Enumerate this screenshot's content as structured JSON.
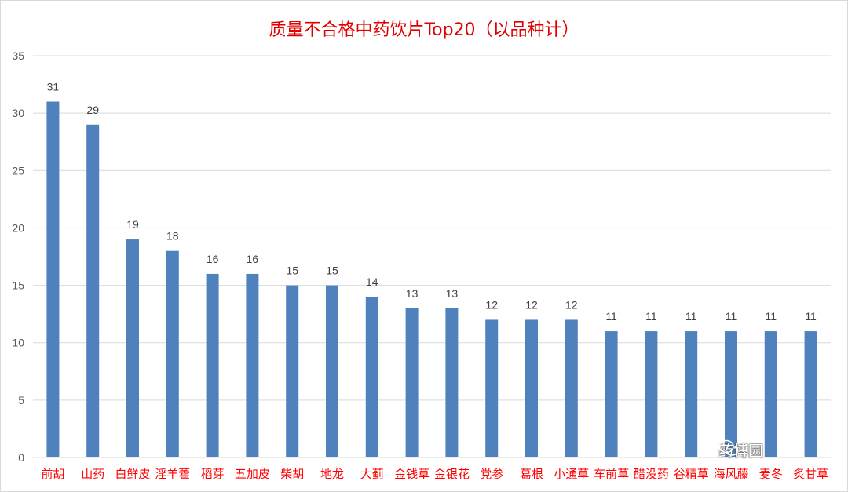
{
  "chart_data": {
    "type": "bar",
    "title": "质量不合格中药饮片Top20（以品种计）",
    "categories": [
      "前胡",
      "山药",
      "白鲜皮",
      "淫羊藿",
      "稻芽",
      "五加皮",
      "柴胡",
      "地龙",
      "大蓟",
      "金钱草",
      "金银花",
      "党参",
      "葛根",
      "小通草",
      "车前草",
      "醋没药",
      "谷精草",
      "海风藤",
      "麦冬",
      "炙甘草"
    ],
    "values": [
      31,
      29,
      19,
      18,
      16,
      16,
      15,
      15,
      14,
      13,
      13,
      12,
      12,
      12,
      11,
      11,
      11,
      11,
      11,
      11
    ],
    "yticks": [
      "0",
      "5",
      "10",
      "15",
      "20",
      "25",
      "30",
      "35"
    ],
    "ylim": [
      0,
      35
    ],
    "grid": true,
    "bar_color": "#4f81bd",
    "label_color": "#ff0000",
    "grid_color": "#d9d9d9"
  },
  "watermark": {
    "text": "药博园",
    "icon": "wechat-icon"
  }
}
